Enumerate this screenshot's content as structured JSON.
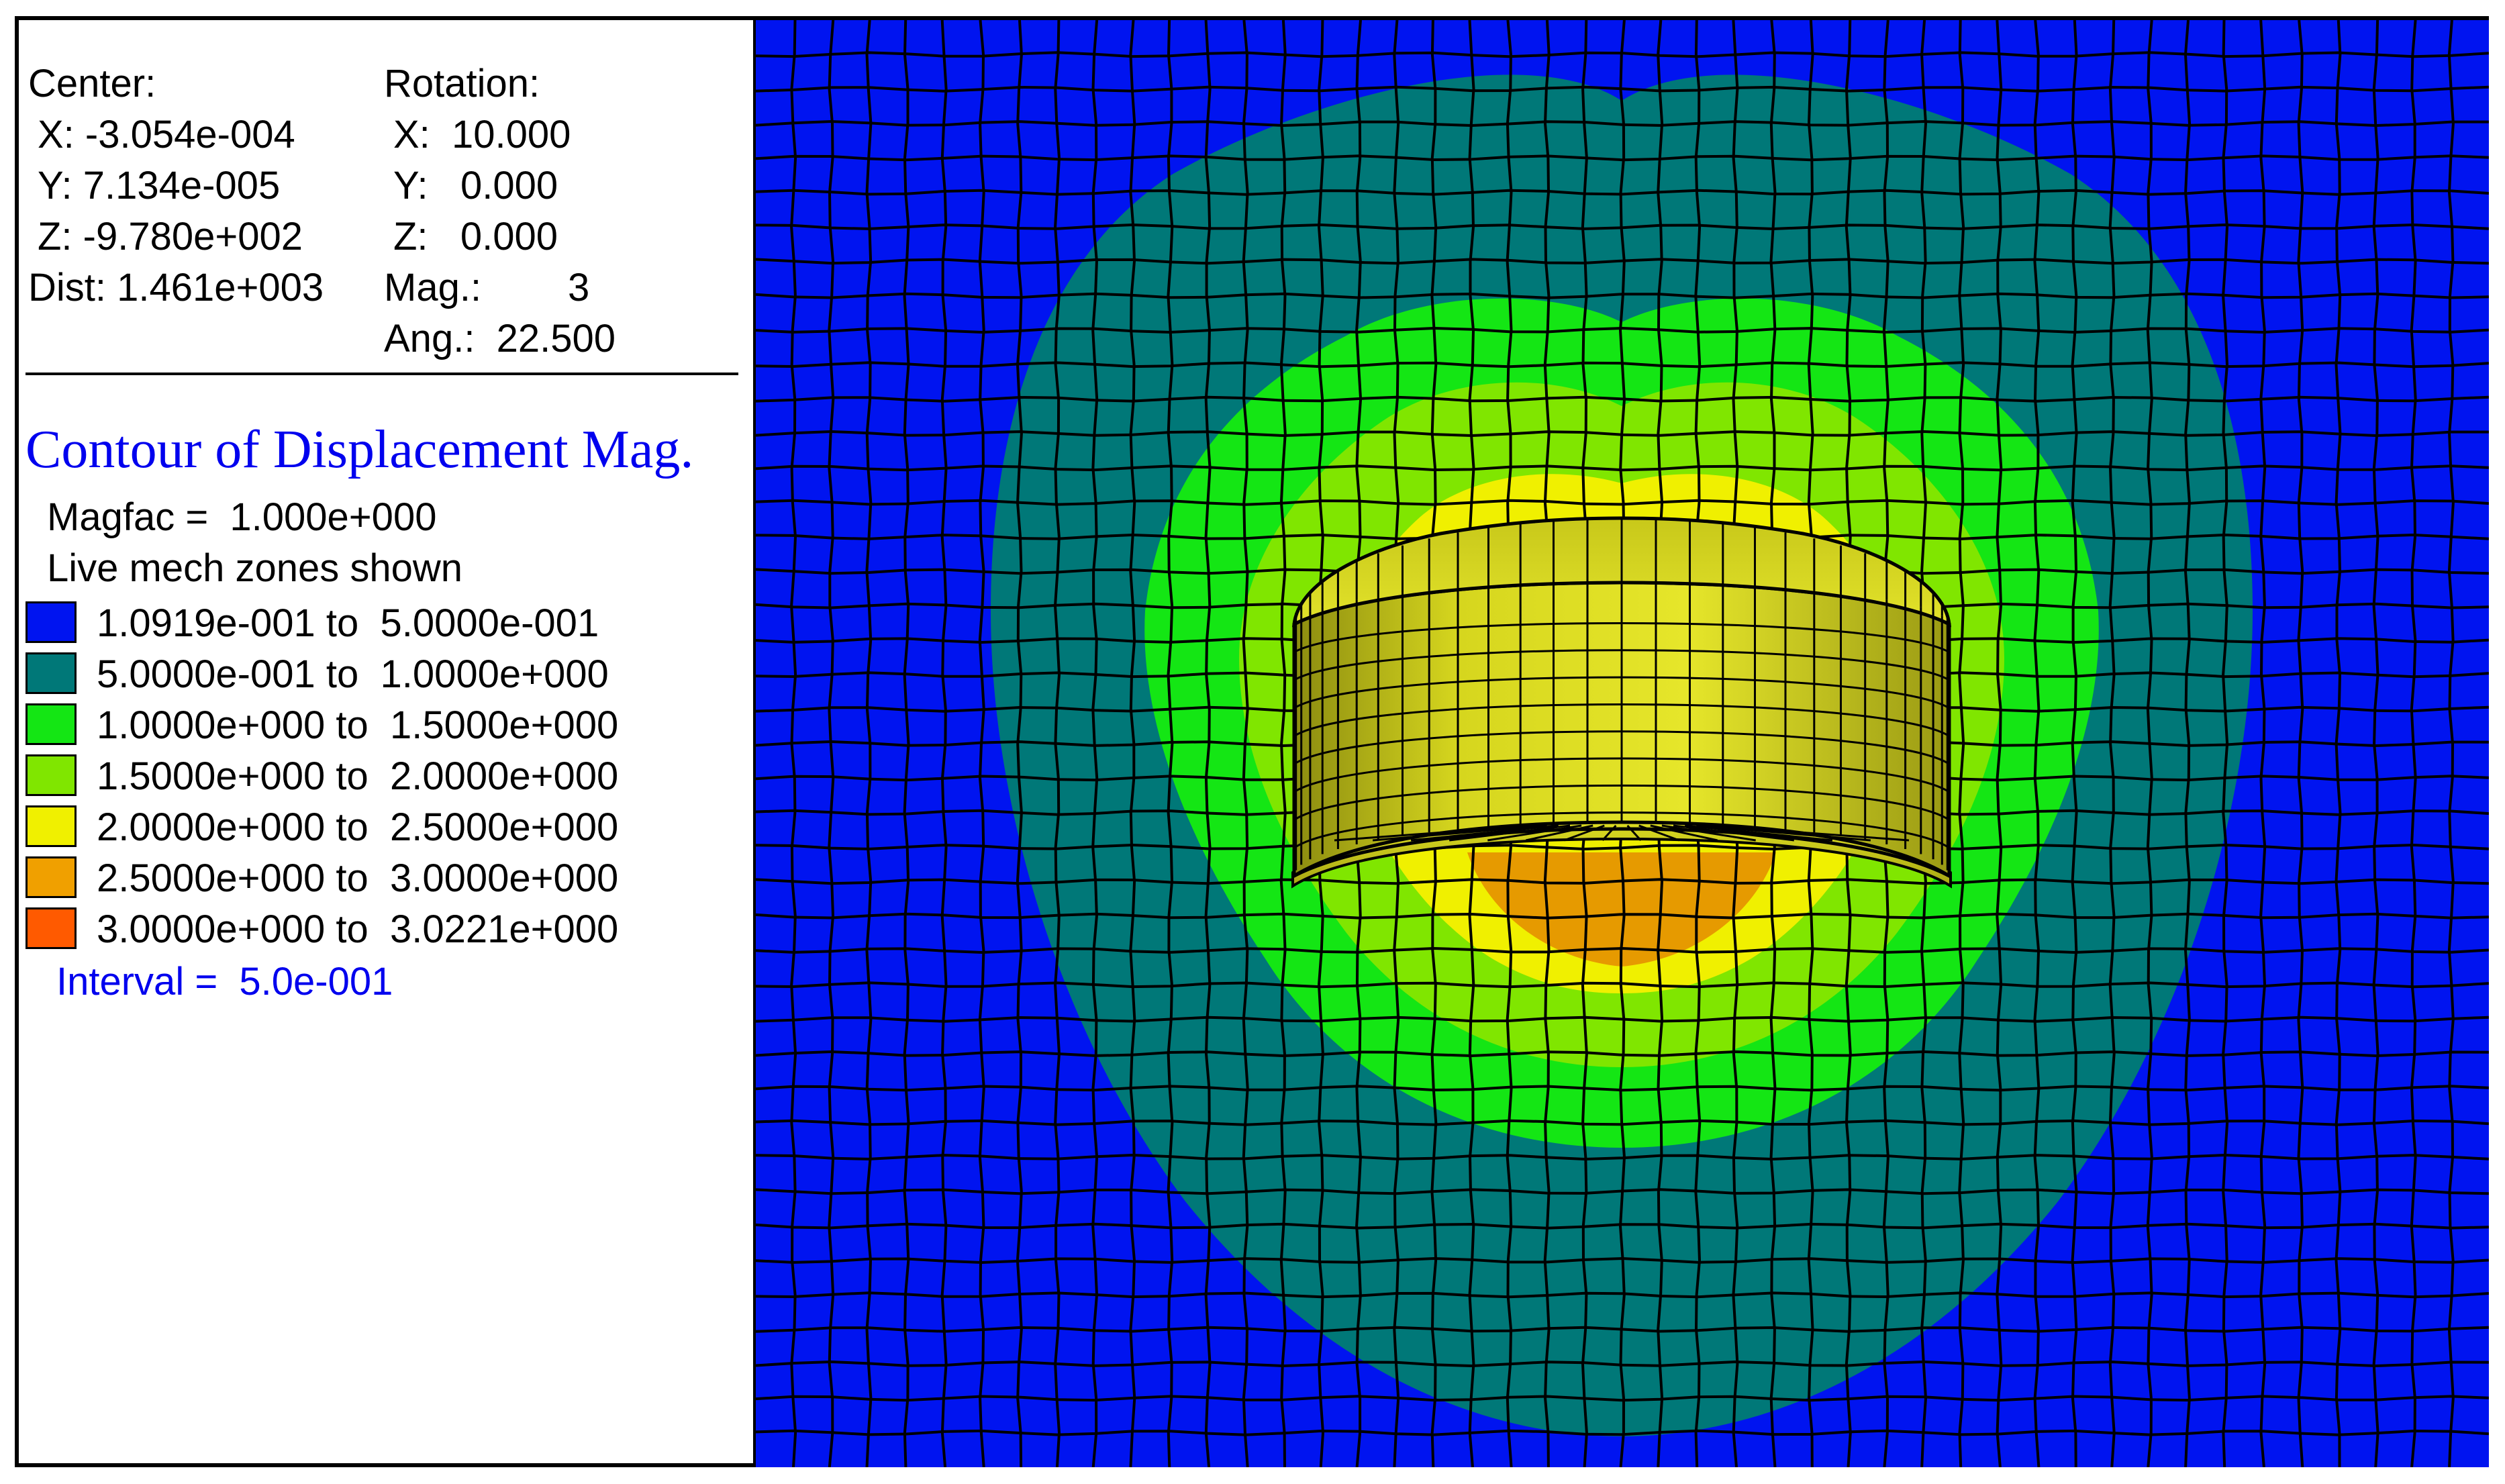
{
  "view": {
    "center_label": "Center:",
    "center_x": "X: -3.054e-004",
    "center_y": "Y: 7.134e-005",
    "center_z": "Z: -9.780e+002",
    "dist": "Dist: 1.461e+003",
    "rotation_label": "Rotation:",
    "rotation_x": "X:  10.000",
    "rotation_y": "Y:   0.000",
    "rotation_z": "Z:   0.000",
    "mag": "Mag.:        3",
    "ang": "Ang.:  22.500"
  },
  "legend": {
    "title": "Contour of Displacement Mag.",
    "magfac": "Magfac =  1.000e+000",
    "zones_note": "Live mech zones shown",
    "bands": [
      {
        "label": "1.0919e-001 to  5.0000e-001",
        "color": "#0014f0"
      },
      {
        "label": "5.0000e-001 to  1.0000e+000",
        "color": "#007878"
      },
      {
        "label": "1.0000e+000 to  1.5000e+000",
        "color": "#14e614"
      },
      {
        "label": "1.5000e+000 to  2.0000e+000",
        "color": "#80e600"
      },
      {
        "label": "2.0000e+000 to  2.5000e+000",
        "color": "#f0f000"
      },
      {
        "label": "2.5000e+000 to  3.0000e+000",
        "color": "#f0a000"
      },
      {
        "label": "3.0000e+000 to  3.0221e+000",
        "color": "#ff5a00"
      }
    ],
    "interval": "Interval =  5.0e-001"
  }
}
